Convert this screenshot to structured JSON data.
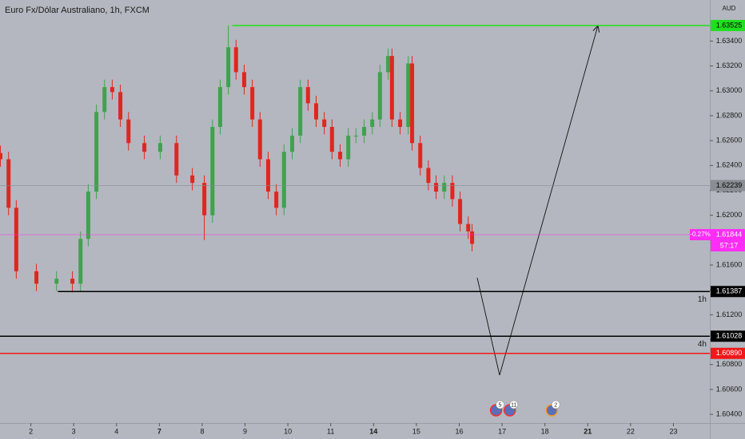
{
  "chart_data": {
    "type": "candlestick",
    "title": "Euro Fx/Dólar Australiano, 1h, FXCM",
    "currency": "AUD",
    "up_color": "#3fa34d",
    "down_color": "#e0261f",
    "xlim": [
      -0.72,
      15.85
    ],
    "ylim": [
      1.6033,
      1.6373
    ],
    "xticks": [
      {
        "value": 0,
        "label": "2"
      },
      {
        "value": 1,
        "label": "3"
      },
      {
        "value": 2,
        "label": "4"
      },
      {
        "value": 3,
        "label": "7",
        "bold": true
      },
      {
        "value": 4,
        "label": "8"
      },
      {
        "value": 5,
        "label": "9"
      },
      {
        "value": 6,
        "label": "10"
      },
      {
        "value": 7,
        "label": "11"
      },
      {
        "value": 8,
        "label": "14",
        "bold": true
      },
      {
        "value": 9,
        "label": "15"
      },
      {
        "value": 10,
        "label": "16"
      },
      {
        "value": 11,
        "label": "17"
      },
      {
        "value": 12,
        "label": "18"
      },
      {
        "value": 13,
        "label": "21",
        "bold": true
      },
      {
        "value": 14,
        "label": "22"
      },
      {
        "value": 15,
        "label": "23"
      }
    ],
    "yticks": [
      {
        "value": 1.604,
        "label": "1.60400"
      },
      {
        "value": 1.606,
        "label": "1.60600"
      },
      {
        "value": 1.608,
        "label": "1.60800"
      },
      {
        "value": 1.61,
        "label": "1.61000"
      },
      {
        "value": 1.612,
        "label": "1.61200"
      },
      {
        "value": 1.614,
        "label": "1.61400"
      },
      {
        "value": 1.616,
        "label": "1.61600"
      },
      {
        "value": 1.618,
        "label": "1.61800"
      },
      {
        "value": 1.62,
        "label": "1.62000"
      },
      {
        "value": 1.622,
        "label": "1.62200"
      },
      {
        "value": 1.624,
        "label": "1.62400"
      },
      {
        "value": 1.626,
        "label": "1.62600"
      },
      {
        "value": 1.628,
        "label": "1.62800"
      },
      {
        "value": 1.63,
        "label": "1.63000"
      },
      {
        "value": 1.632,
        "label": "1.63200"
      },
      {
        "value": 1.634,
        "label": "1.63400"
      }
    ],
    "x": [
      -0.71,
      -0.52,
      -0.34,
      0.13,
      0.6,
      0.97,
      1.16,
      1.34,
      1.53,
      1.72,
      1.9,
      2.09,
      2.28,
      2.65,
      3.02,
      3.4,
      3.77,
      4.05,
      4.24,
      4.42,
      4.61,
      4.79,
      4.98,
      5.17,
      5.35,
      5.54,
      5.73,
      5.91,
      6.1,
      6.29,
      6.47,
      6.66,
      6.85,
      7.03,
      7.22,
      7.41,
      7.59,
      7.78,
      7.97,
      8.15,
      8.34,
      8.43,
      8.62,
      8.81,
      8.9,
      9.09,
      9.28,
      9.46,
      9.65,
      9.84,
      10.02,
      10.21,
      10.3
    ],
    "open": [
      1.625,
      1.6245,
      1.6206,
      1.6155,
      1.6145,
      1.6149,
      1.6145,
      1.6181,
      1.6219,
      1.6283,
      1.6303,
      1.6299,
      1.6277,
      1.6258,
      1.6251,
      1.6258,
      1.6232,
      1.6226,
      1.62,
      1.6271,
      1.6303,
      1.6335,
      1.6315,
      1.6303,
      1.6277,
      1.6245,
      1.6219,
      1.6206,
      1.6251,
      1.6264,
      1.6303,
      1.629,
      1.6277,
      1.6271,
      1.6251,
      1.6245,
      1.6264,
      1.6264,
      1.6271,
      1.6277,
      1.6315,
      1.6328,
      1.6277,
      1.6271,
      1.6322,
      1.6258,
      1.6238,
      1.6226,
      1.6219,
      1.6226,
      1.6213,
      1.6193,
      1.6187
    ],
    "high": [
      1.6256,
      1.6251,
      1.6212,
      1.6161,
      1.6155,
      1.6155,
      1.6187,
      1.6225,
      1.6289,
      1.6309,
      1.6309,
      1.6305,
      1.6283,
      1.6264,
      1.6264,
      1.6264,
      1.6238,
      1.6232,
      1.6277,
      1.6309,
      1.63525,
      1.6341,
      1.6321,
      1.6309,
      1.6283,
      1.6251,
      1.6225,
      1.6257,
      1.627,
      1.6309,
      1.6309,
      1.6296,
      1.6283,
      1.6277,
      1.6257,
      1.627,
      1.627,
      1.6277,
      1.6283,
      1.6321,
      1.6334,
      1.6334,
      1.6283,
      1.6328,
      1.6328,
      1.6264,
      1.6244,
      1.6232,
      1.6232,
      1.6232,
      1.6219,
      1.6199,
      1.6193
    ],
    "low": [
      1.6239,
      1.62,
      1.6149,
      1.6139,
      1.6139,
      1.6138,
      1.6139,
      1.6175,
      1.6213,
      1.6277,
      1.6293,
      1.6271,
      1.6252,
      1.6245,
      1.6245,
      1.6226,
      1.622,
      1.618,
      1.6194,
      1.6265,
      1.6297,
      1.6309,
      1.6297,
      1.6271,
      1.6239,
      1.6213,
      1.62,
      1.62,
      1.6245,
      1.6258,
      1.6284,
      1.6271,
      1.6265,
      1.6245,
      1.6239,
      1.6239,
      1.6258,
      1.6258,
      1.6265,
      1.6271,
      1.6309,
      1.6271,
      1.6265,
      1.6265,
      1.6252,
      1.6232,
      1.622,
      1.6213,
      1.6213,
      1.6207,
      1.6187,
      1.6181,
      1.6171
    ],
    "close": [
      1.6245,
      1.6206,
      1.6155,
      1.6145,
      1.6149,
      1.6145,
      1.6181,
      1.6219,
      1.6283,
      1.6303,
      1.6299,
      1.6277,
      1.6258,
      1.6251,
      1.6258,
      1.6232,
      1.6226,
      1.62,
      1.6271,
      1.6303,
      1.6335,
      1.6315,
      1.6303,
      1.6277,
      1.6245,
      1.6219,
      1.6206,
      1.6251,
      1.6264,
      1.6303,
      1.629,
      1.6277,
      1.6271,
      1.6251,
      1.6245,
      1.6264,
      1.6264,
      1.6271,
      1.6277,
      1.6315,
      1.6328,
      1.6277,
      1.6271,
      1.6322,
      1.6258,
      1.6238,
      1.6226,
      1.6219,
      1.6226,
      1.6213,
      1.6193,
      1.6187,
      1.6177
    ],
    "levels": [
      {
        "value": 1.63525,
        "label": "1.63525",
        "color": "#1fe01f",
        "text_color": "#000000",
        "x_start": 4.7,
        "width": 1.5
      },
      {
        "value": 1.62239,
        "label": "1.62239",
        "color": "#8a8d93",
        "text_color": "#000000",
        "width": 0.6
      },
      {
        "value": 1.61844,
        "label": "1.61844",
        "color": "#ff2df5",
        "text_color": "#ffffff",
        "width": 0.6,
        "change": "-0.27%",
        "countdown": "57:17"
      },
      {
        "value": 1.61387,
        "label": "1.61387",
        "color": "#000000",
        "text_color": "#ffffff",
        "x_start": 0.63,
        "width": 1.5,
        "tag": "1h"
      },
      {
        "value": 1.61028,
        "label": "1.61028",
        "color": "#000000",
        "text_color": "#ffffff",
        "width": 1.5,
        "tag": "4h"
      },
      {
        "value": 1.6089,
        "label": "1.60890",
        "color": "#f01818",
        "text_color": "#ffffff",
        "width": 1.5
      }
    ],
    "events": [
      {
        "x": 10.86,
        "label": "5"
      },
      {
        "x": 11.18,
        "label": "11"
      },
      {
        "x": 12.16,
        "label": "2"
      }
    ]
  }
}
